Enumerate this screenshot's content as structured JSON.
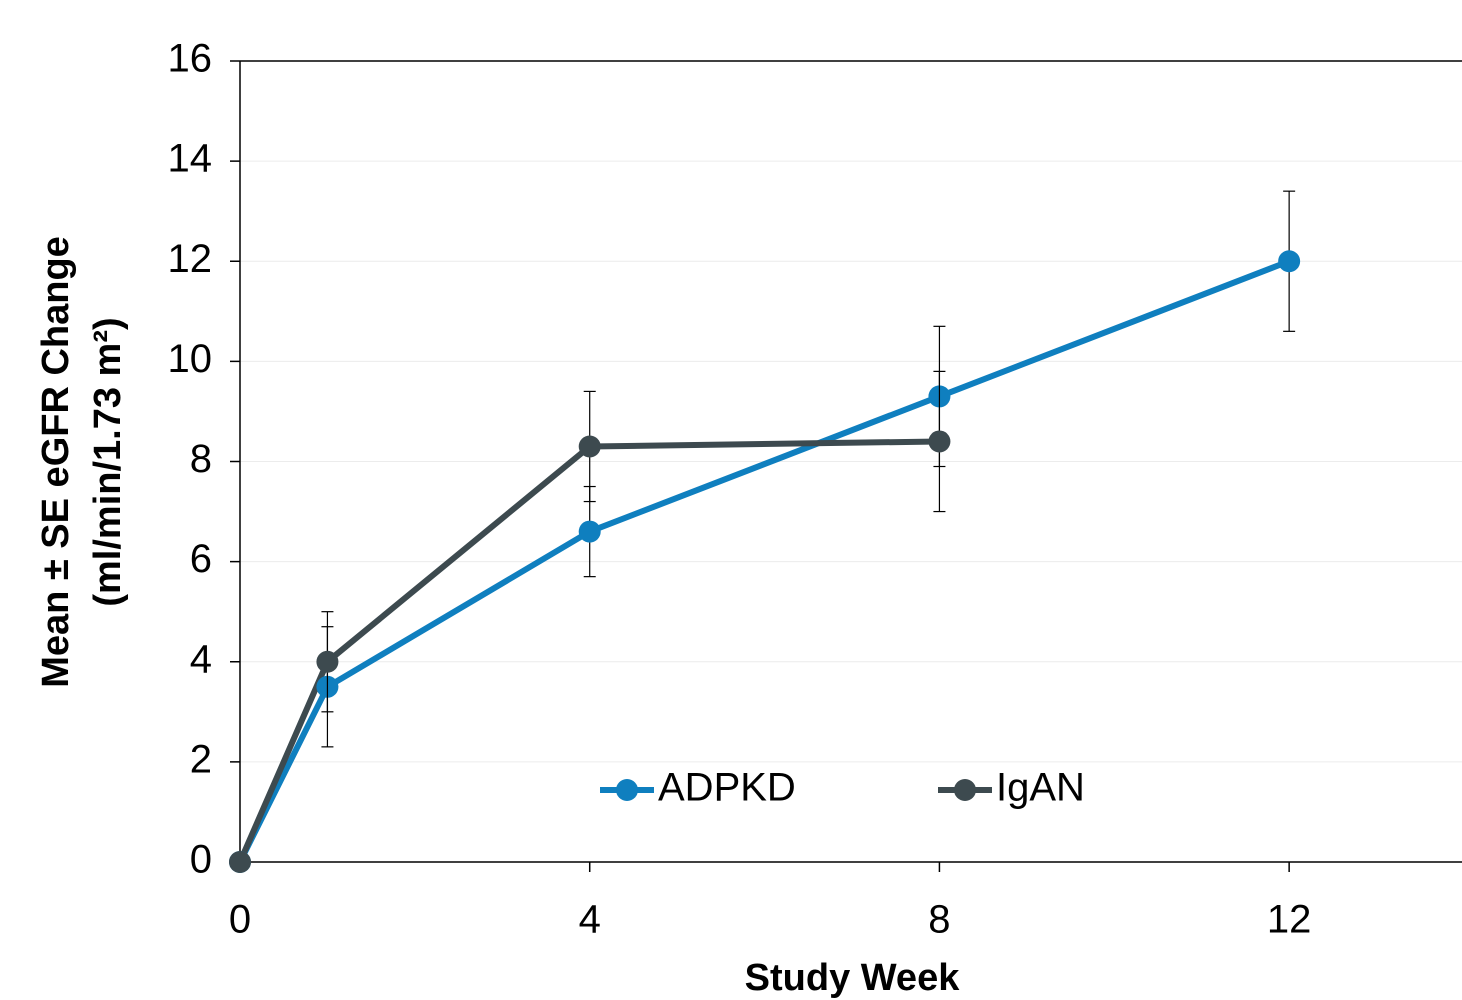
{
  "chart_data": {
    "type": "line",
    "x_label": "Study Week",
    "y_label": [
      "Mean ± SE eGFR Change",
      "(ml/min/1.73 m²)"
    ],
    "x": [
      0,
      1,
      4,
      8,
      12
    ],
    "series": [
      {
        "name": "ADPKD",
        "color": "#0f7fbf",
        "values": [
          0,
          3.5,
          6.6,
          9.3,
          12
        ],
        "errors": [
          0,
          1.2,
          0.9,
          1.4,
          1.4
        ]
      },
      {
        "name": "IgAN",
        "color": "#3d4a4f",
        "values": [
          0,
          4,
          8.3,
          8.4,
          null
        ],
        "errors": [
          0,
          1.0,
          1.1,
          1.4,
          null
        ]
      }
    ],
    "xlim": [
      0,
      14
    ],
    "xticks": [
      0,
      4,
      8,
      12
    ],
    "ylim": [
      0,
      16
    ],
    "yticks": [
      0,
      2,
      4,
      6,
      8,
      10,
      12,
      14,
      16
    ],
    "grid": true,
    "legend": "bottom-center"
  }
}
